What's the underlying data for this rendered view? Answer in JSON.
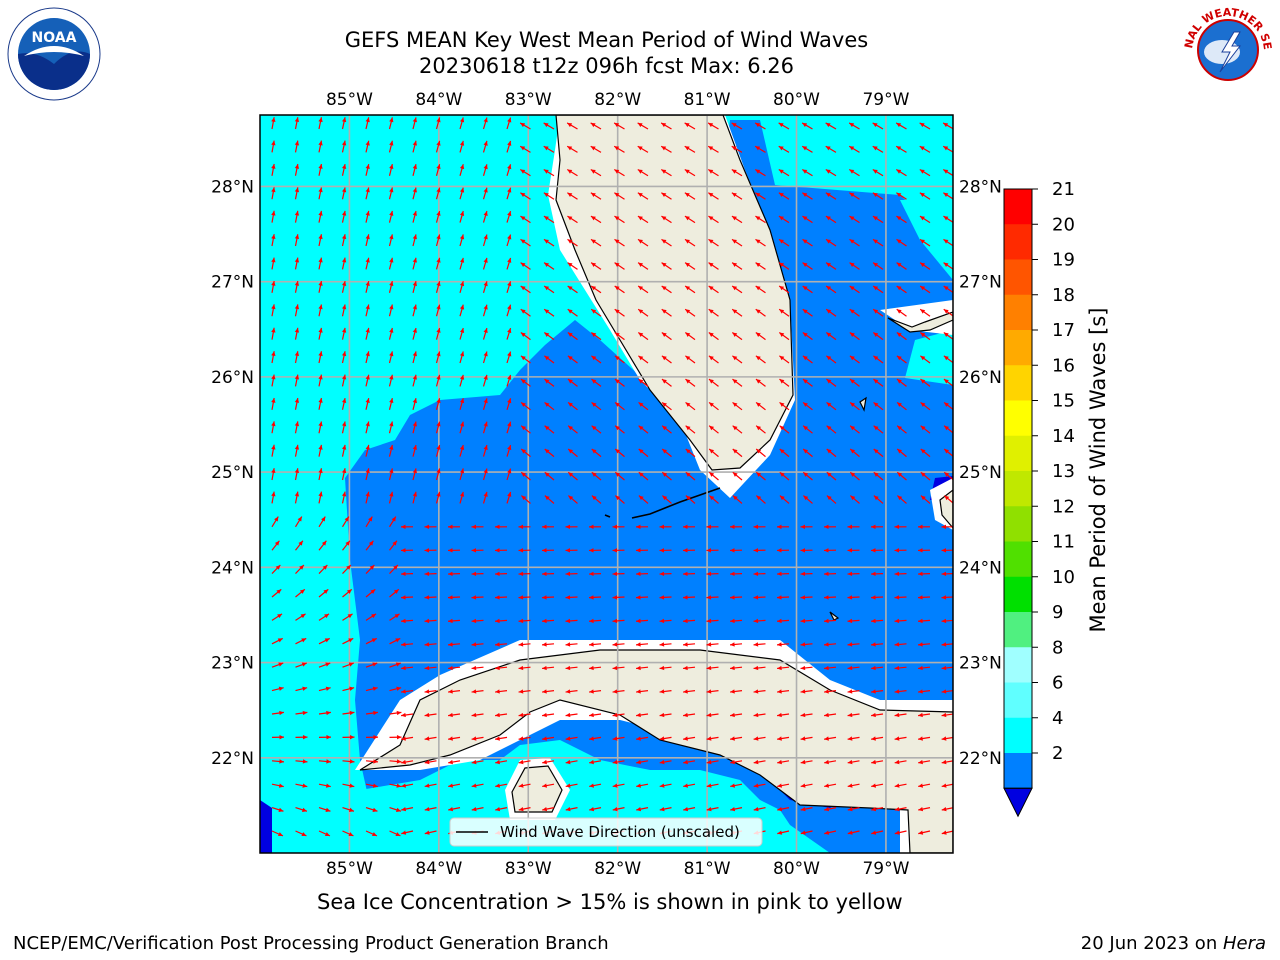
{
  "title": {
    "line1": "GEFS MEAN Key West Mean Period of Wind Waves",
    "line2": "20230618 t12z 096h fcst   Max: 6.26"
  },
  "map": {
    "lon_range": [
      -86.0,
      -78.25
    ],
    "lat_range": [
      21.0,
      28.75
    ],
    "lon_ticks": [
      {
        "value": -85,
        "label": "85°W"
      },
      {
        "value": -84,
        "label": "84°W"
      },
      {
        "value": -83,
        "label": "83°W"
      },
      {
        "value": -82,
        "label": "82°W"
      },
      {
        "value": -81,
        "label": "81°W"
      },
      {
        "value": -80,
        "label": "80°W"
      },
      {
        "value": -79,
        "label": "79°W"
      }
    ],
    "lat_ticks": [
      {
        "value": 28,
        "label": "28°N"
      },
      {
        "value": 27,
        "label": "27°N"
      },
      {
        "value": 26,
        "label": "26°N"
      },
      {
        "value": 25,
        "label": "25°N"
      },
      {
        "value": 24,
        "label": "24°N"
      },
      {
        "value": 23,
        "label": "23°N"
      },
      {
        "value": 22,
        "label": "22°N"
      }
    ],
    "legend_label": "Wind Wave Direction (unscaled)",
    "colors": {
      "land": "#eeedde",
      "band_4_6": "#00ffff",
      "band_2_4": "#0080ff",
      "band_below_2": "#0000e0",
      "arrow": "#ff0000",
      "grid": "#b0b0b0"
    }
  },
  "colorbar": {
    "label": "Mean Period of Wind Waves [s]",
    "ticks": [
      "21",
      "20",
      "19",
      "18",
      "17",
      "16",
      "15",
      "14",
      "13",
      "12",
      "11",
      "10",
      "9",
      "8",
      "6",
      "4",
      "2"
    ],
    "colors": [
      "#ff0000",
      "#ff2a00",
      "#ff5500",
      "#ff8000",
      "#ffaa00",
      "#ffd400",
      "#ffff00",
      "#e0f000",
      "#c0e800",
      "#90e000",
      "#50e000",
      "#00e000",
      "#50f080",
      "#a0ffff",
      "#60ffff",
      "#00ffff",
      "#0080ff"
    ],
    "under_color": "#0000e0"
  },
  "footer": {
    "ice_note": "Sea Ice Concentration > 15% is shown in pink to yellow",
    "branch": "NCEP/EMC/Verification Post Processing Product Generation Branch",
    "date_prefix": "20 Jun 2023 on ",
    "date_host": "Hera"
  },
  "logos": {
    "noaa_text": "NOAA",
    "nws_text": "NATIONAL WEATHER SERVICE"
  }
}
